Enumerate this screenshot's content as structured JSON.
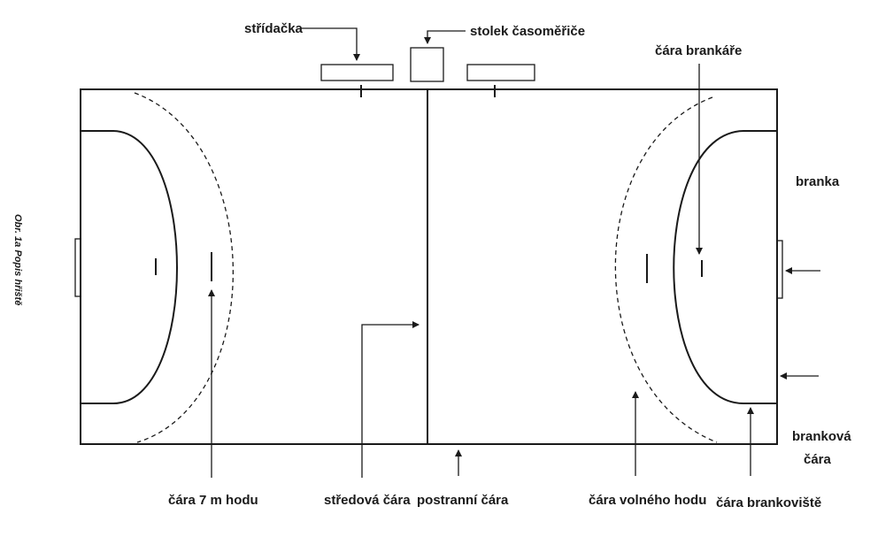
{
  "caption": "Obr. 1a Popis hřiště",
  "labels": {
    "stridacka": "střídačka",
    "stolek": "stolek časoměřiče",
    "cara_brankare": "čára brankáře",
    "branka": "branka",
    "brankova_cara_1": "branková",
    "brankova_cara_2": "čára",
    "cara_7m": "čára 7 m hodu",
    "stredova_cara": "středová čára",
    "postranni_cara": "postranní čára",
    "cara_volneho_hodu": "čára volného hodu",
    "cara_brankoviste": "čára brankoviště"
  }
}
